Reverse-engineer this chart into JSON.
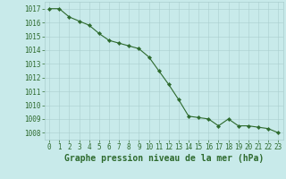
{
  "x": [
    0,
    1,
    2,
    3,
    4,
    5,
    6,
    7,
    8,
    9,
    10,
    11,
    12,
    13,
    14,
    15,
    16,
    17,
    18,
    19,
    20,
    21,
    22,
    23
  ],
  "y": [
    1017.0,
    1017.0,
    1016.4,
    1016.1,
    1015.8,
    1015.2,
    1014.7,
    1014.5,
    1014.3,
    1014.1,
    1013.5,
    1012.5,
    1011.5,
    1010.4,
    1009.2,
    1009.1,
    1009.0,
    1008.5,
    1009.0,
    1008.5,
    1008.5,
    1008.4,
    1008.3,
    1008.0
  ],
  "line_color": "#2d6a2d",
  "marker": "D",
  "marker_size": 2.2,
  "bg_color": "#c8eaea",
  "grid_color": "#aacece",
  "ylabel_ticks": [
    1008,
    1009,
    1010,
    1011,
    1012,
    1013,
    1014,
    1015,
    1016,
    1017
  ],
  "xlabel_label": "Graphe pression niveau de la mer (hPa)",
  "ylim": [
    1007.5,
    1017.5
  ],
  "xlim": [
    -0.5,
    23.5
  ],
  "tick_color": "#2d6a2d",
  "label_color": "#2d6a2d",
  "xlabel_fontsize": 7,
  "ytick_fontsize": 5.5,
  "xtick_fontsize": 5.5,
  "linewidth": 0.8
}
